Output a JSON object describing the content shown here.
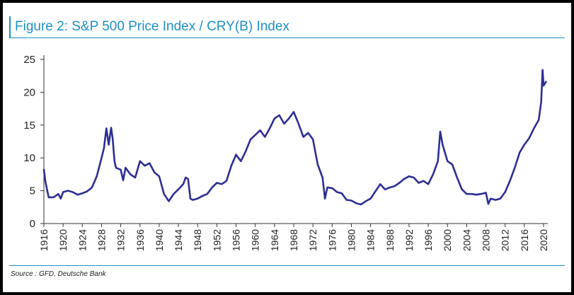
{
  "figure": {
    "title": "Figure 2: S&P 500 Price Index / CRY(B) Index",
    "source": "Source : GFD, Deutsche Bank"
  },
  "colors": {
    "accent": "#1e90c8",
    "series": "#2e2e94",
    "axis": "#333333"
  },
  "chart_data": {
    "type": "line",
    "title": "Figure 2: S&P 500 Price Index / CRY(B) Index",
    "xlabel": "",
    "ylabel": "",
    "xlim": [
      1916,
      2020
    ],
    "ylim": [
      0,
      25
    ],
    "yticks": [
      0,
      5,
      10,
      15,
      20,
      25
    ],
    "xticks": [
      1916,
      1920,
      1924,
      1928,
      1932,
      1936,
      1940,
      1944,
      1948,
      1952,
      1956,
      1960,
      1964,
      1968,
      1972,
      1976,
      1980,
      1984,
      1988,
      1992,
      1996,
      2000,
      2004,
      2008,
      2012,
      2016,
      2020
    ],
    "grid": false,
    "legend": "none",
    "series": [
      {
        "x": [
          1916,
          1916.3,
          1916.7,
          1917,
          1918,
          1919,
          1919.5,
          1920,
          1921,
          1922,
          1923,
          1924,
          1925,
          1926,
          1927,
          1928,
          1928.5,
          1929,
          1929.5,
          1930,
          1930.3,
          1930.7,
          1931,
          1932,
          1932.5,
          1933,
          1934,
          1935,
          1936,
          1937,
          1938,
          1939,
          1940,
          1941,
          1942,
          1943,
          1944,
          1945,
          1945.5,
          1946,
          1946.5,
          1947,
          1948,
          1949,
          1950,
          1951,
          1952,
          1953,
          1954,
          1955,
          1956,
          1957,
          1958,
          1959,
          1960,
          1961,
          1962,
          1963,
          1964,
          1965,
          1966,
          1967,
          1968,
          1969,
          1970,
          1971,
          1972,
          1973,
          1974,
          1974.5,
          1975,
          1976,
          1977,
          1978,
          1979,
          1980,
          1981,
          1982,
          1983,
          1984,
          1985,
          1986,
          1987,
          1988,
          1989,
          1990,
          1991,
          1992,
          1993,
          1994,
          1995,
          1996,
          1997,
          1998,
          1998.5,
          1999,
          2000,
          2001,
          2002,
          2003,
          2004,
          2005,
          2006,
          2007,
          2008,
          2008.5,
          2009,
          2010,
          2011,
          2012,
          2013,
          2014,
          2015,
          2016,
          2017,
          2018,
          2019,
          2019.5,
          2019.8,
          2020,
          2020.5
        ],
        "y": [
          8.2,
          6.5,
          5.0,
          4.0,
          4.0,
          4.5,
          3.8,
          4.8,
          5.0,
          4.8,
          4.4,
          4.6,
          4.9,
          5.5,
          7.2,
          10.0,
          11.5,
          14.5,
          12.0,
          14.6,
          13.0,
          9.5,
          8.5,
          8.2,
          6.6,
          8.5,
          7.5,
          7.0,
          9.5,
          8.8,
          9.2,
          7.8,
          7.2,
          4.5,
          3.4,
          4.5,
          5.2,
          6.0,
          7.0,
          6.8,
          3.8,
          3.6,
          3.8,
          4.2,
          4.5,
          5.5,
          6.2,
          6.0,
          6.5,
          8.8,
          10.5,
          9.5,
          11.0,
          12.8,
          13.5,
          14.2,
          13.2,
          14.5,
          16.0,
          16.5,
          15.2,
          16.0,
          17.0,
          15.2,
          13.2,
          13.8,
          12.8,
          9.0,
          7.0,
          3.8,
          5.5,
          5.4,
          4.8,
          4.6,
          3.6,
          3.5,
          3.1,
          2.9,
          3.4,
          3.8,
          4.9,
          6.0,
          5.2,
          5.5,
          5.7,
          6.2,
          6.8,
          7.2,
          7.0,
          6.2,
          6.5,
          6.0,
          7.5,
          9.5,
          14.0,
          12.0,
          9.5,
          9.0,
          7.0,
          5.2,
          4.5,
          4.5,
          4.4,
          4.5,
          4.7,
          3.0,
          3.8,
          3.6,
          3.8,
          4.8,
          6.5,
          8.5,
          10.8,
          12.0,
          13.0,
          14.5,
          15.8,
          18.5,
          23.4,
          21.0,
          21.6
        ]
      }
    ]
  }
}
